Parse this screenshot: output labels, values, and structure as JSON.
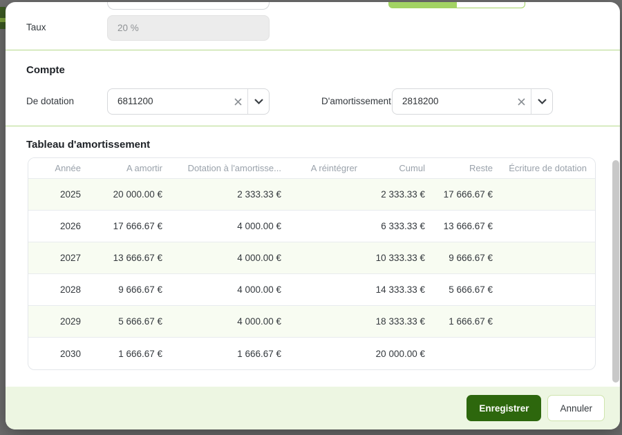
{
  "dialog": {
    "taux": {
      "label": "Taux",
      "value": "20 %"
    },
    "compte": {
      "heading": "Compte",
      "de_dotation": {
        "label": "De dotation",
        "value": "6811200"
      },
      "d_amortissement": {
        "label": "D'amortissement",
        "value": "2818200"
      }
    },
    "table_section": {
      "heading": "Tableau d'amortissement",
      "columns": [
        "Année",
        "A amortir",
        "Dotation à l'amortisse...",
        "A réintégrer",
        "Cumul",
        "Reste",
        "Écriture de dotation"
      ],
      "rows": [
        [
          "2025",
          "20 000.00 €",
          "2 333.33 €",
          "",
          "2 333.33 €",
          "17 666.67 €",
          ""
        ],
        [
          "2026",
          "17 666.67 €",
          "4 000.00 €",
          "",
          "6 333.33 €",
          "13 666.67 €",
          ""
        ],
        [
          "2027",
          "13 666.67 €",
          "4 000.00 €",
          "",
          "10 333.33 €",
          "9 666.67 €",
          ""
        ],
        [
          "2028",
          "9 666.67 €",
          "4 000.00 €",
          "",
          "14 333.33 €",
          "5 666.67 €",
          ""
        ],
        [
          "2029",
          "5 666.67 €",
          "4 000.00 €",
          "",
          "18 333.33 €",
          "1 666.67 €",
          ""
        ],
        [
          "2030",
          "1 666.67 €",
          "1 666.67 €",
          "",
          "20 000.00 €",
          "",
          ""
        ]
      ]
    },
    "footer": {
      "save_label": "Enregistrer",
      "cancel_label": "Annuler"
    },
    "colors": {
      "accent_green": "#a2d363",
      "separator_green": "#b4d98a",
      "footer_bg": "#edf6e2",
      "save_button": "#2d670d",
      "row_tint": "#f8fcf2",
      "overlay": "#6e6e6e"
    }
  }
}
